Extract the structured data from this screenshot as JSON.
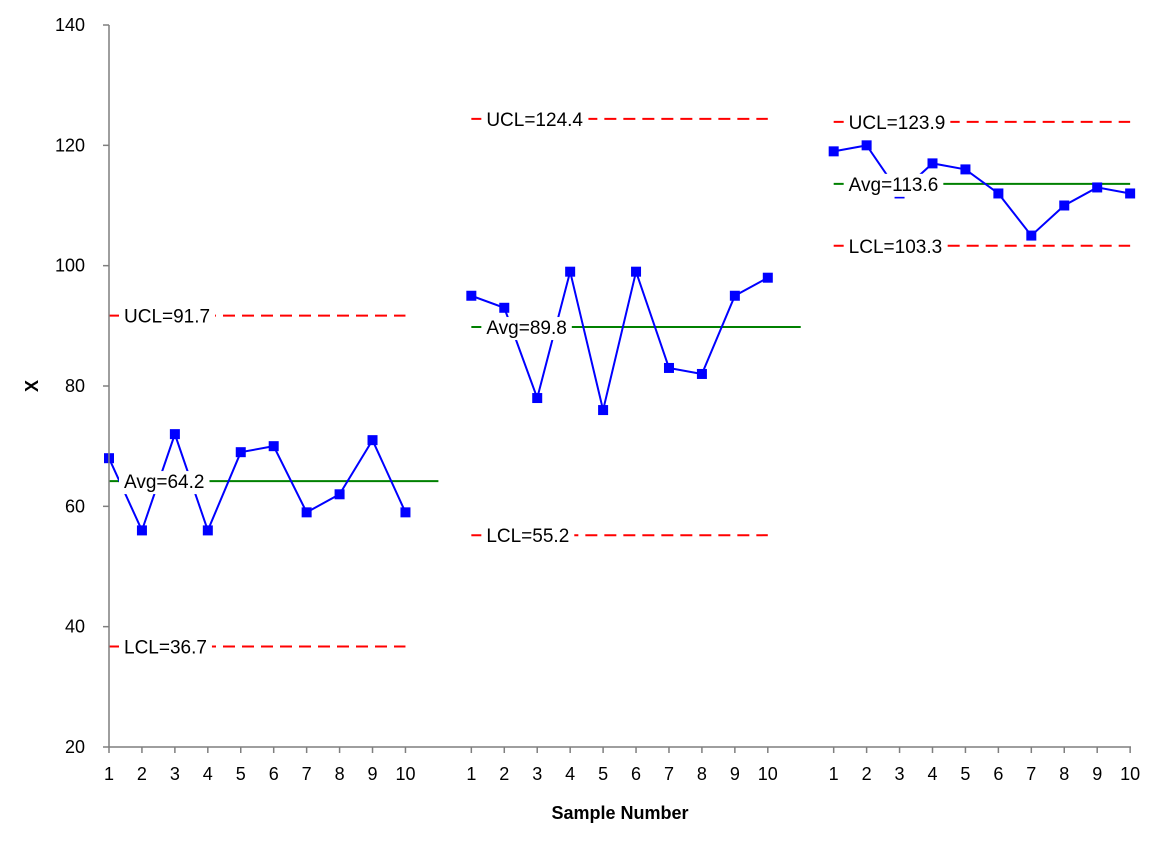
{
  "chart_data": {
    "type": "line",
    "title": "",
    "xlabel": "Sample Number",
    "ylabel": "X",
    "ylim": [
      20,
      140
    ],
    "yticks": [
      20,
      40,
      60,
      80,
      100,
      120,
      140
    ],
    "grid": false,
    "legend": "none",
    "colors": {
      "series": "#0000ff",
      "limits": "#ff0000",
      "average": "#008000",
      "axis": "#7f7f7f"
    },
    "segments": [
      {
        "x": [
          "1",
          "2",
          "3",
          "4",
          "5",
          "6",
          "7",
          "8",
          "9",
          "10"
        ],
        "values": [
          68,
          56,
          72,
          56,
          69,
          70,
          59,
          62,
          71,
          59
        ],
        "ucl": 91.7,
        "avg": 64.2,
        "lcl": 36.7,
        "ucl_label": "UCL=91.7",
        "avg_label": "Avg=64.2",
        "lcl_label": "LCL=36.7"
      },
      {
        "x": [
          "1",
          "2",
          "3",
          "4",
          "5",
          "6",
          "7",
          "8",
          "9",
          "10"
        ],
        "values": [
          95,
          93,
          78,
          99,
          76,
          99,
          83,
          82,
          95,
          98
        ],
        "ucl": 124.4,
        "avg": 89.8,
        "lcl": 55.2,
        "ucl_label": "UCL=124.4",
        "avg_label": "Avg=89.8",
        "lcl_label": "LCL=55.2"
      },
      {
        "x": [
          "1",
          "2",
          "3",
          "4",
          "5",
          "6",
          "7",
          "8",
          "9",
          "10"
        ],
        "values": [
          119,
          120,
          112,
          117,
          116,
          112,
          105,
          110,
          113,
          112
        ],
        "ucl": 123.9,
        "avg": 113.6,
        "lcl": 103.3,
        "ucl_label": "UCL=123.9",
        "avg_label": "Avg=113.6",
        "lcl_label": "LCL=103.3"
      }
    ]
  }
}
